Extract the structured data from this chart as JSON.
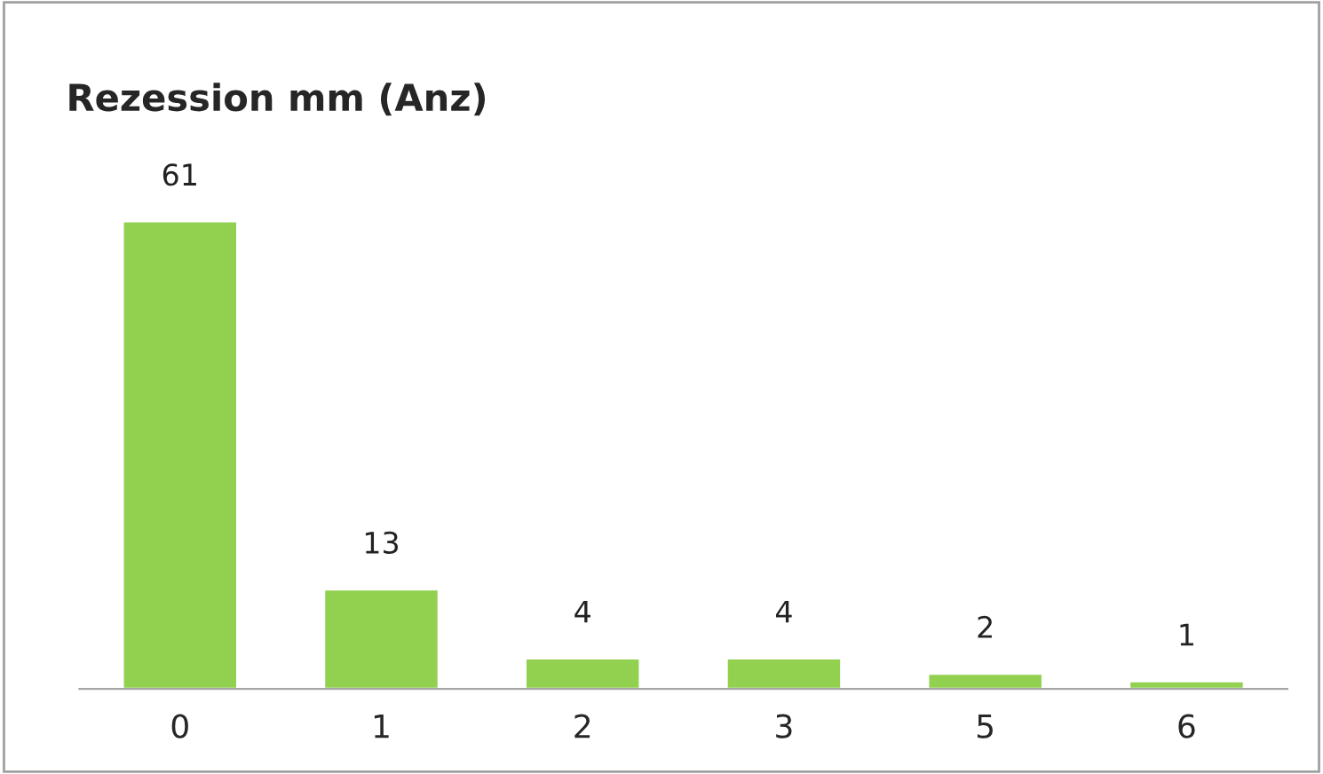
{
  "chart_data": {
    "type": "bar",
    "title": "Rezession mm (Anz)",
    "categories": [
      "0",
      "1",
      "2",
      "3",
      "5",
      "6"
    ],
    "values": [
      61,
      13,
      4,
      4,
      2,
      1
    ],
    "color": "#92d050",
    "data_labels": true,
    "grid": false,
    "legend": false
  }
}
